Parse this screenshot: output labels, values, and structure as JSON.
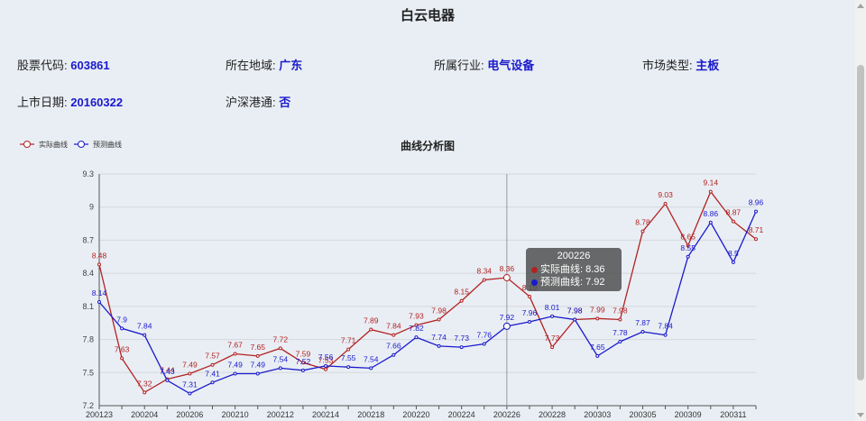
{
  "page": {
    "title": "白云电器"
  },
  "info": {
    "stock_code_label": "股票代码:",
    "stock_code": "603861",
    "region_label": "所在地域:",
    "region": "广东",
    "industry_label": "所属行业:",
    "industry": "电气设备",
    "market_label": "市场类型:",
    "market": "主板",
    "listing_date_label": "上市日期:",
    "listing_date": "20160322",
    "connect_label": "沪深港通:",
    "connect": "否"
  },
  "tooltip": {
    "title": "200226",
    "actual_text": "实际曲线: 8.36",
    "predicted_text": "预测曲线: 7.92"
  },
  "colors": {
    "actual": "#b22222",
    "predicted": "#1a1acc"
  },
  "chart_data": {
    "type": "line",
    "title": "曲线分析图",
    "legend_placement": "top-left",
    "grid": true,
    "ylim": [
      7.2,
      9.3
    ],
    "yticks": [
      "7.2",
      "7.5",
      "7.8",
      "8.1",
      "8.4",
      "8.7",
      "9",
      "9.3"
    ],
    "x": [
      "200123",
      "200124",
      "200204",
      "200205",
      "200206",
      "200207",
      "200210",
      "200211",
      "200212",
      "200213",
      "200214",
      "200217",
      "200218",
      "200219",
      "200220",
      "200221",
      "200224",
      "200225",
      "200226",
      "200227",
      "200228",
      "200302",
      "200303",
      "200304",
      "200305",
      "200306",
      "200309",
      "200310",
      "200311",
      "200312"
    ],
    "xtick_labels": [
      "200123",
      "200204",
      "200206",
      "200210",
      "200212",
      "200214",
      "200218",
      "200220",
      "200224",
      "200226",
      "200228",
      "200303",
      "200305",
      "200309",
      "200311"
    ],
    "highlight_x": "200226",
    "series": [
      {
        "name": "实际曲线",
        "values": [
          8.48,
          7.63,
          7.32,
          7.44,
          7.49,
          7.57,
          7.67,
          7.65,
          7.72,
          7.59,
          7.53,
          7.71,
          7.89,
          7.84,
          7.93,
          7.98,
          8.15,
          8.34,
          8.36,
          8.19,
          7.73,
          7.98,
          7.99,
          7.98,
          8.78,
          9.03,
          8.65,
          9.14,
          8.87,
          8.71
        ]
      },
      {
        "name": "预测曲线",
        "values": [
          8.14,
          7.9,
          7.84,
          7.43,
          7.31,
          7.41,
          7.49,
          7.49,
          7.54,
          7.52,
          7.56,
          7.55,
          7.54,
          7.66,
          7.82,
          7.74,
          7.73,
          7.76,
          7.92,
          7.96,
          8.01,
          7.98,
          7.65,
          7.78,
          7.87,
          7.84,
          8.55,
          8.86,
          8.5,
          8.96
        ]
      }
    ]
  }
}
